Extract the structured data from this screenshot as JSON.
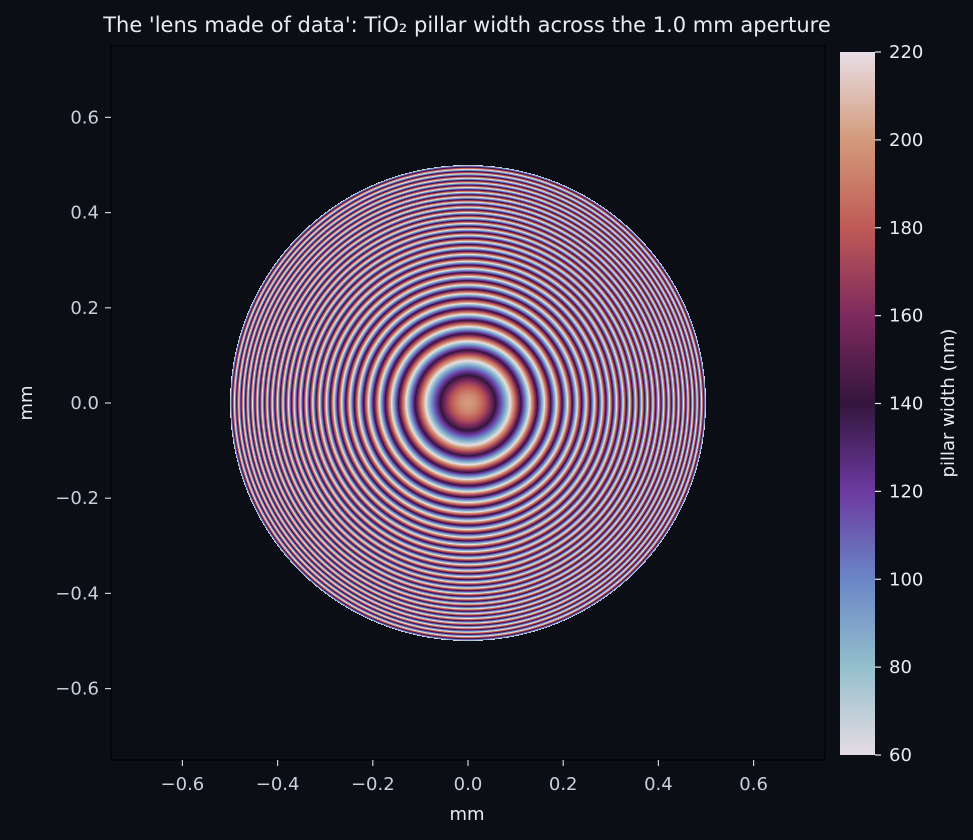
{
  "chart_data": {
    "type": "heatmap",
    "title": "The 'lens made of data': TiO₂ pillar width across the 1.0 mm aperture",
    "xlabel": "mm",
    "ylabel": "mm",
    "xlim": [
      -0.75,
      0.75
    ],
    "ylim": [
      -0.75,
      0.75
    ],
    "x_ticks": [
      -0.6,
      -0.4,
      -0.2,
      0.0,
      0.2,
      0.4,
      0.6
    ],
    "y_ticks": [
      -0.6,
      -0.4,
      -0.2,
      0.0,
      0.2,
      0.4,
      0.6
    ],
    "x_tick_labels": [
      "−0.6",
      "−0.4",
      "−0.2",
      "0.0",
      "0.2",
      "0.4",
      "0.6"
    ],
    "y_tick_labels": [
      "−0.6",
      "−0.4",
      "−0.2",
      "0.0",
      "0.2",
      "0.4",
      "0.6"
    ],
    "aperture_diameter_mm": 1.0,
    "aperture_radius_mm": 0.5,
    "grid": false,
    "colorbar": {
      "label": "pillar width (nm)",
      "min": 60,
      "max": 220,
      "ticks": [
        60,
        80,
        100,
        120,
        140,
        160,
        180,
        200,
        220
      ],
      "tick_labels": [
        "60",
        "80",
        "100",
        "120",
        "140",
        "160",
        "180",
        "200",
        "220"
      ],
      "colormap_stops": [
        "#e6dce4",
        "#94bfcc",
        "#6a86c6",
        "#6c3aa0",
        "#33163d",
        "#7e2a5e",
        "#bf5a56",
        "#d39a7a",
        "#e8dee6"
      ]
    },
    "center_value_nm": 200,
    "pattern": "concentric Fresnel-like rings of pillar width wrapping through 60–220 nm, with interference blobs along the x and y axes near ±0.24 and ±0.38 mm"
  },
  "colors": {
    "background": "#0b0e15",
    "axis": "#c8d0dc",
    "text": "#e8ecf2"
  }
}
